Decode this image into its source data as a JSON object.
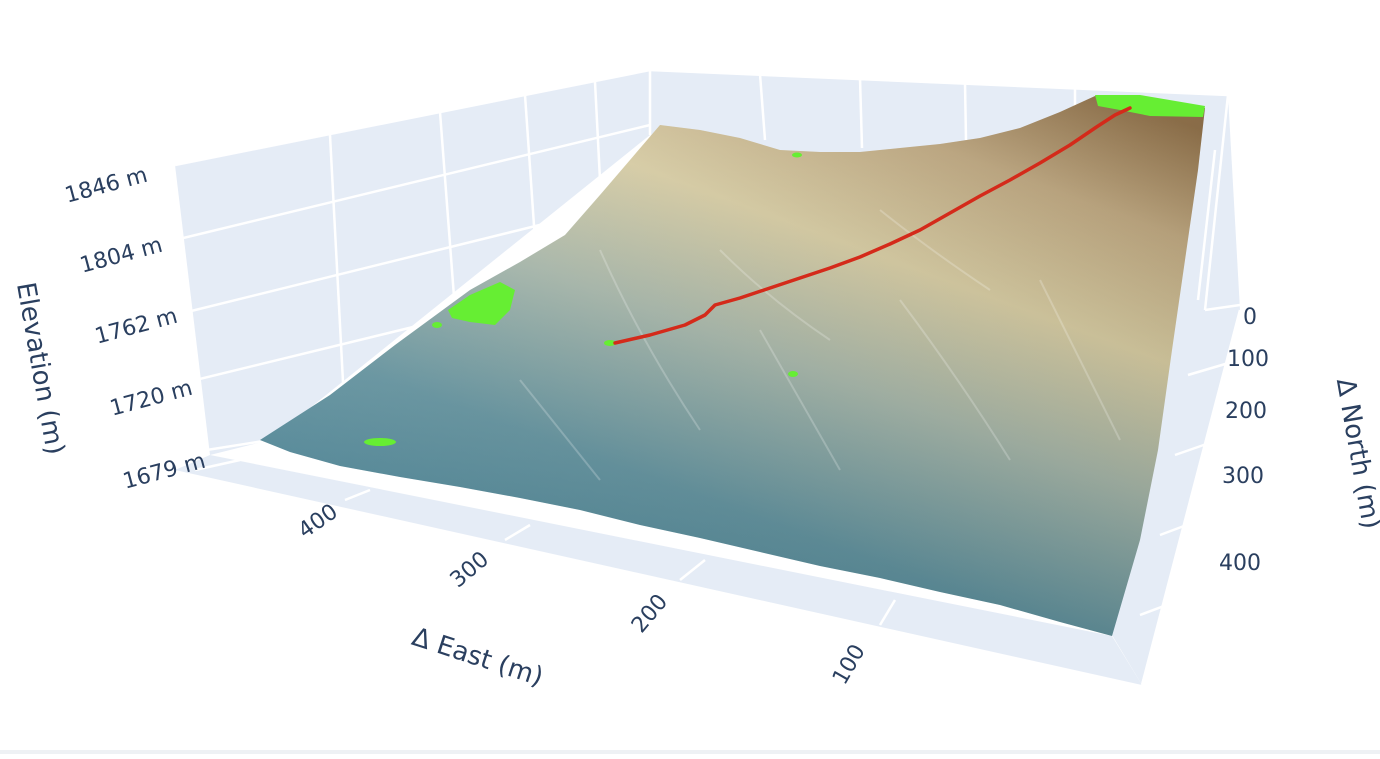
{
  "chart_data": {
    "type": "surface",
    "title": "",
    "axes": {
      "z": {
        "label": "Elevation (m)",
        "ticks": [
          "1846 m",
          "1804 m",
          "1762 m",
          "1720 m",
          "1679 m"
        ],
        "range": [
          1679,
          1846
        ]
      },
      "x": {
        "label": "Δ East (m)",
        "ticks": [
          "400",
          "300",
          "200",
          "100"
        ]
      },
      "y": {
        "label": "Δ North (m)",
        "ticks": [
          "0",
          "100",
          "200",
          "300",
          "400"
        ]
      }
    },
    "surface_colorscale": [
      "#3c7d93",
      "#6e9ea6",
      "#b0bfa8",
      "#dcd0a3",
      "#c2a97e",
      "#8c6a3f"
    ],
    "highlight_color": "#66ee33",
    "track_color": "#d42a1a",
    "scene_background": "#e5ecf6",
    "grid": true
  }
}
